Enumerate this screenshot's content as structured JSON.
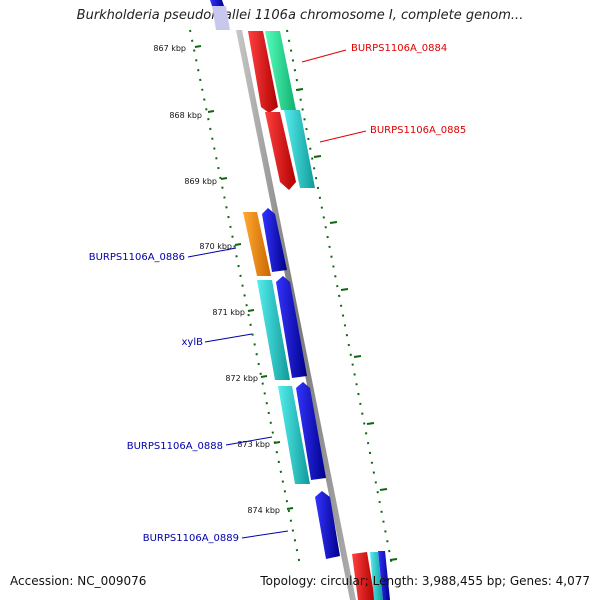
{
  "title": "Burkholderia pseudomallei 1106a chromosome I, complete genom...",
  "footer": {
    "accession": "Accession: NC_009076",
    "summary": "Topology: circular; Length: 3,988,455 bp; Genes: 4,077"
  },
  "ticks": [
    "867 kbp",
    "868 kbp",
    "869 kbp",
    "870 kbp",
    "871 kbp",
    "872 kbp",
    "873 kbp",
    "874 kbp"
  ],
  "labels": [
    {
      "id": "label-burps1106a-0884",
      "text": "BURPS1106A_0884",
      "color": "#dd0000"
    },
    {
      "id": "label-burps1106a-0885",
      "text": "BURPS1106A_0885",
      "color": "#dd0000"
    },
    {
      "id": "label-burps1106a-0886",
      "text": "BURPS1106A_0886",
      "color": "#0000aa"
    },
    {
      "id": "label-xylb",
      "text": "xylB",
      "color": "#0000aa"
    },
    {
      "id": "label-burps1106a-0888",
      "text": "BURPS1106A_0888",
      "color": "#0000aa"
    },
    {
      "id": "label-burps1106a-0889",
      "text": "BURPS1106A_0889",
      "color": "#0000aa"
    }
  ],
  "colors": {
    "backbone": "#8a8a8a",
    "red": "#ee0000",
    "green": "#22ee99",
    "cyan": "#22cccc",
    "orange": "#ff8800",
    "blue": "#0000dd",
    "tick": "#116611"
  }
}
